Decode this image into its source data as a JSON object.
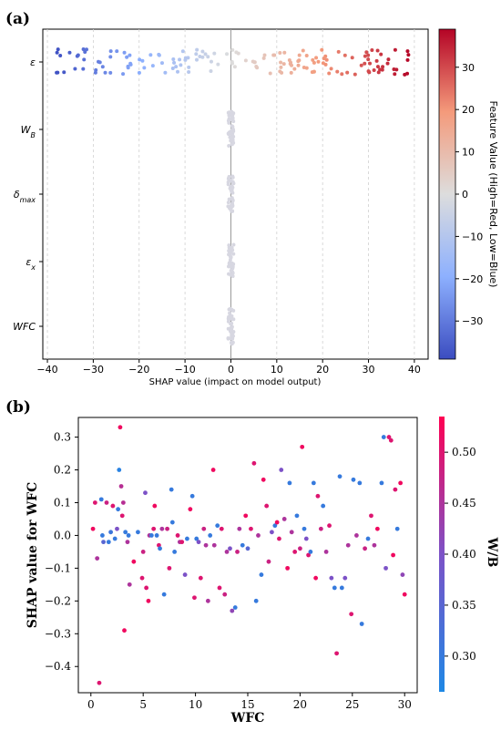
{
  "chart_data": [
    {
      "panel_label": "(a)",
      "type": "scatter",
      "subtype": "shap-beeswarm",
      "xlabel": "SHAP value (impact on model output)",
      "xlim": [
        -41,
        43
      ],
      "xticks": [
        -40,
        -30,
        -20,
        -10,
        0,
        10,
        20,
        30,
        40
      ],
      "features": [
        "ε",
        "W_B",
        "δ_max",
        "ε_x",
        "WFC"
      ],
      "features_display": [
        {
          "base": "ε",
          "sub": ""
        },
        {
          "base": "W",
          "sub": "B"
        },
        {
          "base": "δ",
          "sub": "max"
        },
        {
          "base": "ε",
          "sub": "x"
        },
        {
          "base": "WFC",
          "sub": ""
        }
      ],
      "grid": "vertical dashed",
      "colorbar": {
        "title": "Feature Value (High=Red, Low=Blue)",
        "range": [
          -39,
          39
        ],
        "ticks": [
          -30,
          -20,
          -10,
          0,
          10,
          20,
          30
        ],
        "colormap": "coolwarm",
        "low_color": "#3b4cc0",
        "mid_color": "#dddddd",
        "high_color": "#b40426"
      },
      "series": [
        {
          "feature": "ε",
          "x_range": [
            -38,
            39
          ],
          "points": 160,
          "note": "SHAP value roughly equal to feature value; colored by value"
        },
        {
          "feature": "W_B",
          "x_range": [
            -0.6,
            0.6
          ],
          "points": 40,
          "color": "neutral"
        },
        {
          "feature": "δ_max",
          "x_range": [
            -0.6,
            0.6
          ],
          "points": 40,
          "color": "neutral"
        },
        {
          "feature": "ε_x",
          "x_range": [
            -0.6,
            0.6
          ],
          "points": 40,
          "color": "neutral"
        },
        {
          "feature": "WFC",
          "x_range": [
            -0.6,
            0.6
          ],
          "points": 40,
          "color": "neutral"
        }
      ]
    },
    {
      "panel_label": "(b)",
      "type": "scatter",
      "subtype": "shap-dependence",
      "xlabel": "WFC",
      "ylabel": "SHAP value for WFC",
      "xlim": [
        -1.2,
        31.2
      ],
      "ylim": [
        -0.48,
        0.36
      ],
      "xticks": [
        0,
        5,
        10,
        15,
        20,
        25,
        30
      ],
      "yticks": [
        -0.4,
        -0.3,
        -0.2,
        -0.1,
        0.0,
        0.1,
        0.2,
        0.3
      ],
      "ytick_labels": [
        "−0.4",
        "−0.3",
        "−0.2",
        "−0.1",
        "0.0",
        "0.1",
        "0.2",
        "0.3"
      ],
      "colorbar": {
        "title": "W/B",
        "range": [
          0.265,
          0.535
        ],
        "ticks": [
          0.3,
          0.35,
          0.4,
          0.45,
          0.5
        ],
        "tick_labels": [
          "0.30",
          "0.35",
          "0.40",
          "0.45",
          "0.50"
        ],
        "low_color": "#1e88e5",
        "high_color": "#ff0052"
      },
      "points": [
        [
          0.2,
          0.02,
          0.52
        ],
        [
          0.4,
          0.1,
          0.5
        ],
        [
          0.6,
          -0.07,
          0.45
        ],
        [
          0.8,
          -0.45,
          0.5
        ],
        [
          1.0,
          0.11,
          0.3
        ],
        [
          1.1,
          0.0,
          0.3
        ],
        [
          1.2,
          -0.02,
          0.35
        ],
        [
          1.5,
          0.1,
          0.48
        ],
        [
          1.7,
          -0.02,
          0.3
        ],
        [
          1.9,
          0.01,
          0.31
        ],
        [
          2.1,
          0.09,
          0.5
        ],
        [
          2.3,
          -0.01,
          0.3
        ],
        [
          2.5,
          0.02,
          0.4
        ],
        [
          2.6,
          0.08,
          0.3
        ],
        [
          2.7,
          0.2,
          0.28
        ],
        [
          2.8,
          0.33,
          0.52
        ],
        [
          2.9,
          0.15,
          0.46
        ],
        [
          3.0,
          0.06,
          0.5
        ],
        [
          3.1,
          0.1,
          0.46
        ],
        [
          3.2,
          -0.29,
          0.52
        ],
        [
          3.3,
          0.01,
          0.3
        ],
        [
          3.5,
          -0.02,
          0.45
        ],
        [
          3.6,
          0.0,
          0.3
        ],
        [
          3.7,
          -0.15,
          0.45
        ],
        [
          4.1,
          -0.08,
          0.52
        ],
        [
          4.5,
          0.01,
          0.3
        ],
        [
          4.9,
          -0.13,
          0.5
        ],
        [
          5.0,
          -0.05,
          0.48
        ],
        [
          5.2,
          0.13,
          0.4
        ],
        [
          5.3,
          -0.16,
          0.5
        ],
        [
          5.5,
          -0.2,
          0.52
        ],
        [
          5.6,
          0.0,
          0.45
        ],
        [
          5.8,
          0.0,
          0.3
        ],
        [
          6.0,
          0.02,
          0.5
        ],
        [
          6.1,
          0.09,
          0.52
        ],
        [
          6.3,
          0.0,
          0.3
        ],
        [
          6.5,
          -0.03,
          0.5
        ],
        [
          6.6,
          -0.04,
          0.3
        ],
        [
          6.8,
          0.02,
          0.45
        ],
        [
          7.0,
          -0.18,
          0.3
        ],
        [
          7.3,
          0.02,
          0.48
        ],
        [
          7.5,
          -0.1,
          0.5
        ],
        [
          7.7,
          0.14,
          0.3
        ],
        [
          7.8,
          0.04,
          0.3
        ],
        [
          8.0,
          -0.05,
          0.3
        ],
        [
          8.3,
          0.0,
          0.5
        ],
        [
          8.5,
          -0.02,
          0.45
        ],
        [
          8.7,
          -0.02,
          0.5
        ],
        [
          9.0,
          -0.12,
          0.4
        ],
        [
          9.2,
          -0.01,
          0.3
        ],
        [
          9.5,
          0.08,
          0.52
        ],
        [
          9.7,
          0.12,
          0.3
        ],
        [
          9.9,
          -0.19,
          0.5
        ],
        [
          10.1,
          -0.01,
          0.3
        ],
        [
          10.3,
          -0.02,
          0.4
        ],
        [
          10.5,
          -0.13,
          0.5
        ],
        [
          10.8,
          0.02,
          0.48
        ],
        [
          11.0,
          -0.03,
          0.45
        ],
        [
          11.2,
          -0.2,
          0.45
        ],
        [
          11.4,
          0.0,
          0.3
        ],
        [
          11.7,
          0.2,
          0.52
        ],
        [
          11.8,
          -0.03,
          0.45
        ],
        [
          12.1,
          0.03,
          0.3
        ],
        [
          12.3,
          -0.16,
          0.5
        ],
        [
          12.5,
          0.02,
          0.5
        ],
        [
          12.8,
          -0.18,
          0.48
        ],
        [
          13.0,
          -0.05,
          0.45
        ],
        [
          13.3,
          -0.04,
          0.4
        ],
        [
          13.5,
          -0.23,
          0.42
        ],
        [
          13.8,
          -0.22,
          0.3
        ],
        [
          14.0,
          -0.05,
          0.48
        ],
        [
          14.2,
          0.02,
          0.45
        ],
        [
          14.5,
          -0.03,
          0.3
        ],
        [
          14.8,
          0.06,
          0.52
        ],
        [
          15.0,
          -0.04,
          0.35
        ],
        [
          15.3,
          0.02,
          0.5
        ],
        [
          15.6,
          0.22,
          0.5
        ],
        [
          15.8,
          -0.2,
          0.3
        ],
        [
          16.0,
          0.0,
          0.45
        ],
        [
          16.3,
          -0.12,
          0.3
        ],
        [
          16.5,
          0.17,
          0.52
        ],
        [
          16.8,
          0.09,
          0.5
        ],
        [
          17.0,
          -0.08,
          0.48
        ],
        [
          17.3,
          0.01,
          0.4
        ],
        [
          17.6,
          0.03,
          0.3
        ],
        [
          17.8,
          0.04,
          0.52
        ],
        [
          18.0,
          -0.01,
          0.5
        ],
        [
          18.2,
          0.2,
          0.4
        ],
        [
          18.5,
          0.05,
          0.45
        ],
        [
          18.8,
          -0.1,
          0.52
        ],
        [
          19.0,
          0.16,
          0.3
        ],
        [
          19.2,
          0.01,
          0.45
        ],
        [
          19.5,
          -0.05,
          0.5
        ],
        [
          19.7,
          0.06,
          0.3
        ],
        [
          20.0,
          -0.04,
          0.48
        ],
        [
          20.2,
          0.27,
          0.52
        ],
        [
          20.4,
          0.02,
          0.3
        ],
        [
          20.6,
          -0.01,
          0.4
        ],
        [
          20.8,
          -0.06,
          0.5
        ],
        [
          21.0,
          -0.05,
          0.3
        ],
        [
          21.3,
          0.16,
          0.3
        ],
        [
          21.5,
          -0.13,
          0.52
        ],
        [
          21.7,
          0.12,
          0.5
        ],
        [
          22.0,
          0.02,
          0.48
        ],
        [
          22.2,
          0.09,
          0.3
        ],
        [
          22.5,
          -0.05,
          0.45
        ],
        [
          22.8,
          0.03,
          0.5
        ],
        [
          23.0,
          -0.13,
          0.4
        ],
        [
          23.3,
          -0.16,
          0.3
        ],
        [
          23.5,
          -0.36,
          0.5
        ],
        [
          23.8,
          0.18,
          0.3
        ],
        [
          24.0,
          -0.16,
          0.3
        ],
        [
          24.3,
          -0.13,
          0.4
        ],
        [
          24.6,
          -0.03,
          0.45
        ],
        [
          24.9,
          -0.24,
          0.5
        ],
        [
          25.1,
          0.17,
          0.3
        ],
        [
          25.4,
          0.0,
          0.45
        ],
        [
          25.7,
          0.16,
          0.3
        ],
        [
          25.9,
          -0.27,
          0.3
        ],
        [
          26.2,
          -0.04,
          0.48
        ],
        [
          26.5,
          -0.01,
          0.3
        ],
        [
          26.8,
          0.06,
          0.5
        ],
        [
          27.1,
          -0.03,
          0.45
        ],
        [
          27.4,
          0.02,
          0.52
        ],
        [
          27.8,
          0.16,
          0.3
        ],
        [
          28.0,
          0.3,
          0.3
        ],
        [
          28.2,
          -0.1,
          0.4
        ],
        [
          28.5,
          0.3,
          0.5
        ],
        [
          28.7,
          0.29,
          0.5
        ],
        [
          28.9,
          -0.06,
          0.52
        ],
        [
          29.1,
          0.14,
          0.5
        ],
        [
          29.3,
          0.02,
          0.3
        ],
        [
          29.6,
          0.16,
          0.52
        ],
        [
          29.8,
          -0.12,
          0.42
        ],
        [
          30.0,
          -0.18,
          0.52
        ]
      ]
    }
  ]
}
